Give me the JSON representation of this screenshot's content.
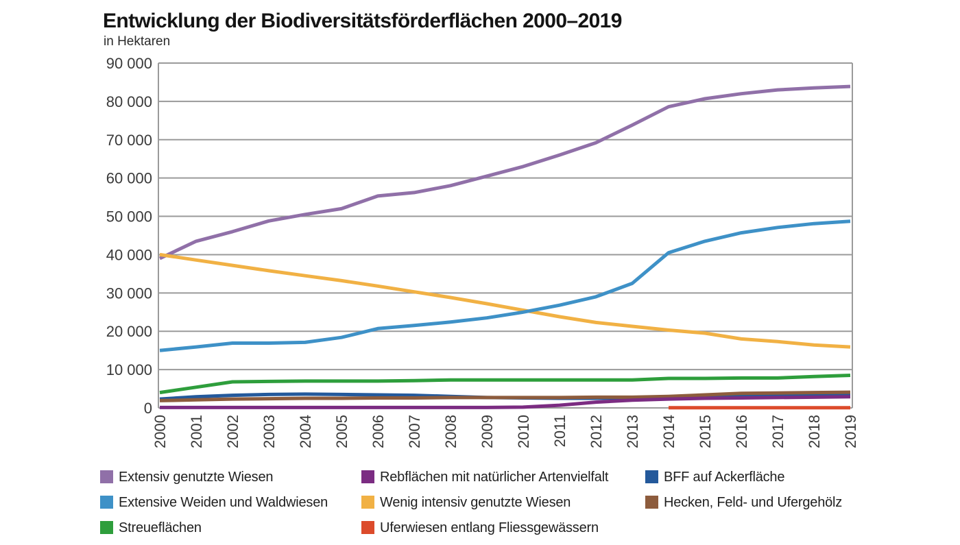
{
  "header": {
    "title": "Entwicklung der Biodiversitätsförderflächen 2000–2019",
    "subtitle": "in Hektaren"
  },
  "chart_data": {
    "type": "line",
    "title": "Entwicklung der Biodiversitätsförderflächen 2000–2019",
    "subtitle": "in Hektaren",
    "unit": "Hektaren",
    "grid": true,
    "legend_position": "bottom",
    "x": [
      2000,
      2001,
      2002,
      2003,
      2004,
      2005,
      2006,
      2007,
      2008,
      2009,
      2010,
      2011,
      2012,
      2013,
      2014,
      2015,
      2016,
      2017,
      2018,
      2019
    ],
    "x_tick_labels": [
      "2000",
      "2001",
      "2002",
      "2003",
      "2004",
      "2005",
      "2006",
      "2007",
      "2008",
      "2009",
      "2010",
      "2011",
      "2012",
      "2013",
      "2014",
      "2015",
      "2016",
      "2017",
      "2018",
      "2019"
    ],
    "y_axis": {
      "min": 0,
      "max": 90000,
      "tick_step": 10000,
      "tick_labels": [
        "0",
        "10 000",
        "20 000",
        "30 000",
        "40 000",
        "50 000",
        "60 000",
        "70 000",
        "80 000",
        "90 000"
      ]
    },
    "colors": {
      "grid": "#9a9a9a",
      "axis_text": "#3a3a3a"
    },
    "series": [
      {
        "id": "extensiv-genutzte-wiesen",
        "name": "Extensiv genutzte Wiesen",
        "color": "#9070A8",
        "values": [
          39000,
          43500,
          46000,
          48800,
          50500,
          52000,
          55300,
          56200,
          58000,
          60500,
          63000,
          66000,
          69200,
          73800,
          78600,
          80700,
          82000,
          83000,
          83500,
          83900
        ]
      },
      {
        "id": "wenig-intensiv-genutzte-wiesen",
        "name": "Wenig intensiv genutzte Wiesen",
        "color": "#F1B144",
        "values": [
          40000,
          38600,
          37200,
          35800,
          34500,
          33200,
          31800,
          30300,
          28800,
          27200,
          25500,
          23800,
          22300,
          21300,
          20300,
          19500,
          18000,
          17300,
          16400,
          15900
        ]
      },
      {
        "id": "extensive-weiden-und-waldwiesen",
        "name": "Extensive Weiden und Waldwiesen",
        "color": "#3E91C7",
        "values": [
          15000,
          15900,
          16900,
          16900,
          17100,
          18400,
          20700,
          21500,
          22400,
          23500,
          25000,
          26800,
          29000,
          32500,
          40500,
          43500,
          45700,
          47100,
          48100,
          48700
        ]
      },
      {
        "id": "streueflaechen",
        "name": "Streueflächen",
        "color": "#2E9E3C",
        "values": [
          4000,
          5400,
          6800,
          6900,
          7000,
          7000,
          7000,
          7100,
          7300,
          7300,
          7300,
          7300,
          7300,
          7300,
          7700,
          7700,
          7800,
          7800,
          8200,
          8500
        ]
      },
      {
        "id": "bff-auf-ackerflaeche",
        "name": "BFF auf Ackerfläche",
        "color": "#24599B",
        "values": [
          2300,
          2900,
          3300,
          3500,
          3600,
          3500,
          3400,
          3300,
          3000,
          2700,
          2600,
          2500,
          2500,
          2600,
          2900,
          3100,
          3300,
          3400,
          3500,
          3600
        ]
      },
      {
        "id": "hecken-feld-und-ufergehoelz",
        "name": "Hecken, Feld- und Ufergehölz",
        "color": "#8D5C3D",
        "values": [
          1900,
          2100,
          2300,
          2400,
          2500,
          2500,
          2600,
          2600,
          2700,
          2700,
          2700,
          2700,
          2800,
          2800,
          3000,
          3400,
          3800,
          3900,
          4000,
          4100
        ]
      },
      {
        "id": "rebflaechen-mit-natuerlicher-artenvielfalt",
        "name": "Rebflächen mit natürlicher Artenvielfalt",
        "color": "#7B2C82",
        "values": [
          100,
          100,
          100,
          100,
          100,
          100,
          100,
          100,
          100,
          100,
          200,
          700,
          1500,
          2000,
          2300,
          2500,
          2600,
          2700,
          2800,
          2900
        ]
      },
      {
        "id": "uferwiesen-entlang-fliessgewaessern",
        "name": "Uferwiesen entlang Fliessgewässern",
        "color": "#DC4B2B",
        "values": [
          null,
          null,
          null,
          null,
          null,
          null,
          null,
          null,
          null,
          null,
          null,
          null,
          null,
          null,
          60,
          60,
          60,
          60,
          60,
          60
        ]
      }
    ]
  },
  "legend": {
    "order": [
      0,
      2,
      3,
      6,
      1,
      7,
      4,
      5
    ]
  }
}
